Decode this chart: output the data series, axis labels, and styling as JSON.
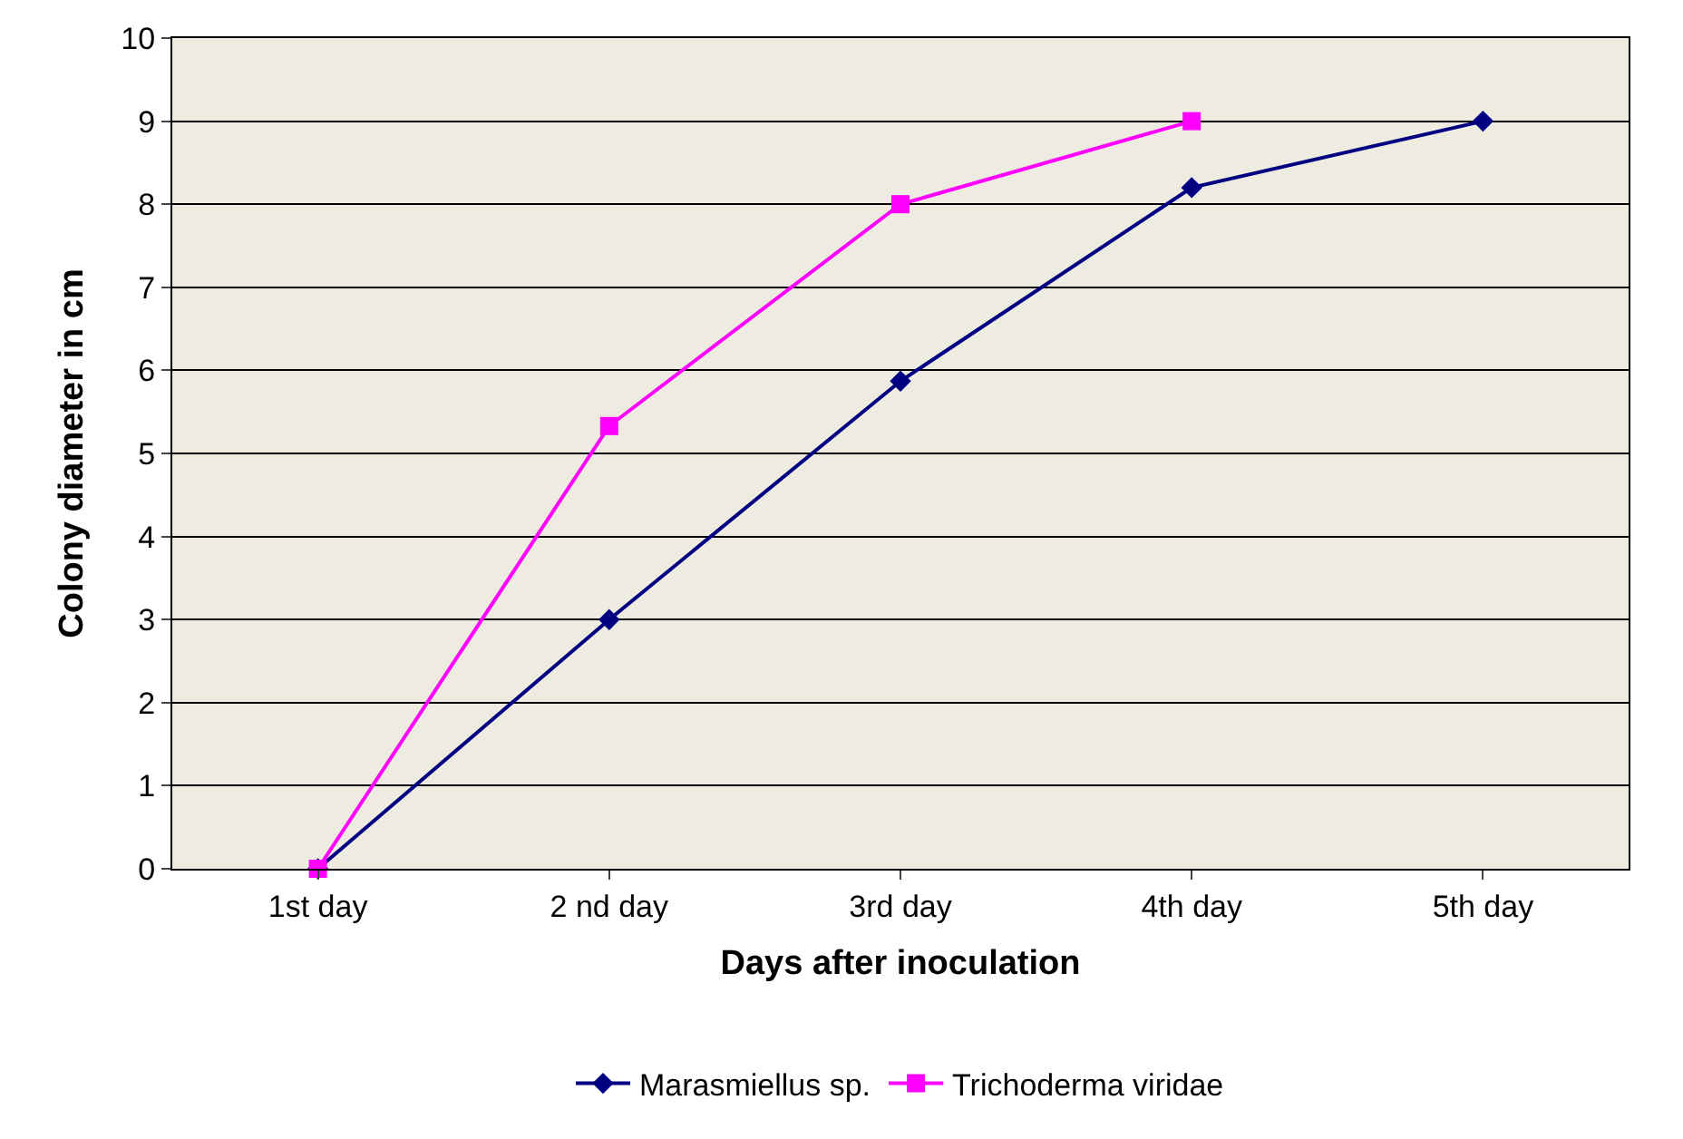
{
  "chart_data": {
    "type": "line",
    "xlabel": "Days after inoculation",
    "ylabel": "Colony diameter in cm",
    "categories": [
      "1st day",
      "2 nd day",
      "3rd day",
      "4th day",
      "5th day"
    ],
    "series": [
      {
        "name": "Marasmiellus sp.",
        "color": "#000080",
        "marker": "diamond",
        "values": [
          0,
          3,
          5.87,
          8.2,
          9
        ]
      },
      {
        "name": "Trichoderma viridae",
        "color": "#ff00ff",
        "marker": "square",
        "values": [
          0,
          5.33,
          8,
          9,
          null
        ]
      }
    ],
    "ylim": [
      0,
      10
    ],
    "yticks": [
      0,
      1,
      2,
      3,
      4,
      5,
      6,
      7,
      8,
      9,
      10
    ],
    "grid": "y",
    "legend": "bottom",
    "line_style": "solid"
  }
}
